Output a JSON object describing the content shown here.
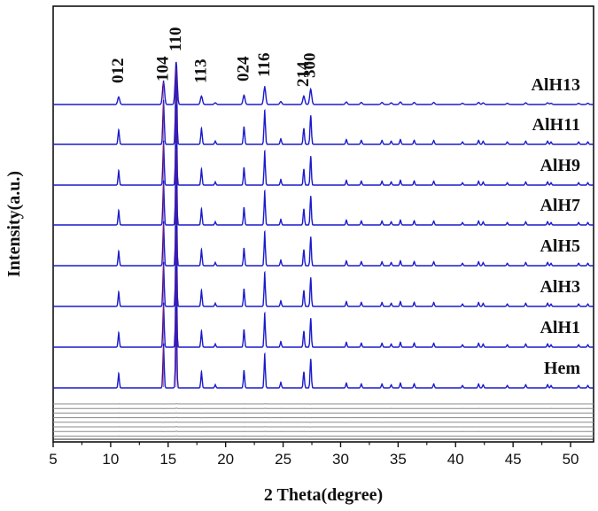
{
  "chart_data": {
    "type": "line",
    "xlabel": "2 Theta(degree)",
    "ylabel": "Intensity(a.u.)",
    "xlim": [
      5,
      52
    ],
    "x_ticks": [
      "5",
      "10",
      "15",
      "20",
      "25",
      "30",
      "35",
      "40",
      "45",
      "50"
    ],
    "grid": false,
    "series_color": "#1a1acc",
    "residual_color": "#8a8a8a",
    "baseline_color": "#2a2a2a",
    "peak_labels": [
      {
        "text": "012",
        "x": 10.7
      },
      {
        "text": "104",
        "x": 14.6
      },
      {
        "text": "110",
        "x": 15.7
      },
      {
        "text": "113",
        "x": 17.9
      },
      {
        "text": "024",
        "x": 21.6
      },
      {
        "text": "116",
        "x": 23.4
      },
      {
        "text": "214",
        "x": 26.8
      },
      {
        "text": "300",
        "x": 27.4
      }
    ],
    "peaks": [
      {
        "x": 10.7,
        "h": 0.18
      },
      {
        "x": 14.6,
        "h": 0.55
      },
      {
        "x": 15.7,
        "h": 1.0
      },
      {
        "x": 17.9,
        "h": 0.2
      },
      {
        "x": 19.1,
        "h": 0.04
      },
      {
        "x": 21.6,
        "h": 0.22
      },
      {
        "x": 23.4,
        "h": 0.42
      },
      {
        "x": 24.8,
        "h": 0.07
      },
      {
        "x": 26.8,
        "h": 0.2
      },
      {
        "x": 27.4,
        "h": 0.36
      },
      {
        "x": 30.5,
        "h": 0.06
      },
      {
        "x": 31.8,
        "h": 0.05
      },
      {
        "x": 33.6,
        "h": 0.05
      },
      {
        "x": 34.4,
        "h": 0.04
      },
      {
        "x": 35.2,
        "h": 0.06
      },
      {
        "x": 36.4,
        "h": 0.05
      },
      {
        "x": 38.1,
        "h": 0.05
      },
      {
        "x": 40.6,
        "h": 0.03
      },
      {
        "x": 42.0,
        "h": 0.05
      },
      {
        "x": 42.4,
        "h": 0.04
      },
      {
        "x": 44.5,
        "h": 0.03
      },
      {
        "x": 46.1,
        "h": 0.04
      },
      {
        "x": 48.0,
        "h": 0.04
      },
      {
        "x": 48.3,
        "h": 0.03
      },
      {
        "x": 50.7,
        "h": 0.03
      },
      {
        "x": 51.5,
        "h": 0.03
      }
    ],
    "series": [
      {
        "name": "AlH13"
      },
      {
        "name": "AlH11"
      },
      {
        "name": "AlH9"
      },
      {
        "name": "AlH7"
      },
      {
        "name": "AlH5"
      },
      {
        "name": "AlH3"
      },
      {
        "name": "AlH1"
      },
      {
        "name": "Hem"
      }
    ],
    "residual_count": 8
  }
}
